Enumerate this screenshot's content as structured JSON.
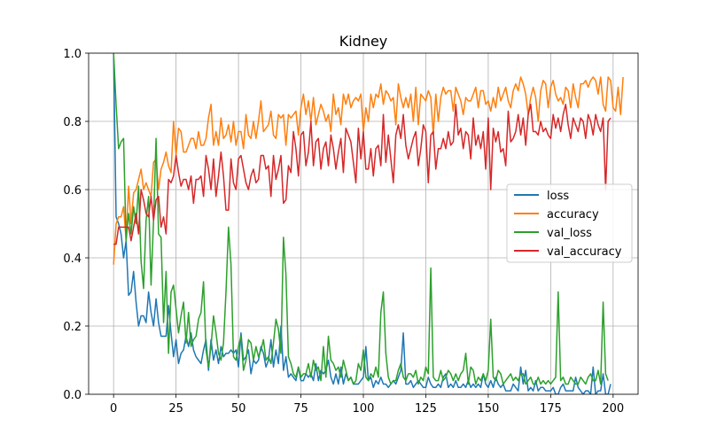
{
  "chart_data": {
    "type": "line",
    "title": "Kidney",
    "xlabel": "",
    "ylabel": "",
    "xlim": [
      -10,
      210
    ],
    "ylim": [
      0,
      1.0
    ],
    "xticks": [
      0,
      25,
      50,
      75,
      100,
      125,
      150,
      175,
      200
    ],
    "yticks": [
      0.0,
      0.2,
      0.4,
      0.6,
      0.8,
      1.0
    ],
    "xtick_labels": [
      "0",
      "25",
      "50",
      "75",
      "100",
      "125",
      "150",
      "175",
      "200"
    ],
    "ytick_labels": [
      "0.0",
      "0.2",
      "0.4",
      "0.6",
      "0.8",
      "1.0"
    ],
    "grid": true,
    "legend_position": "center-right",
    "x_start": 0,
    "series": [
      {
        "name": "loss",
        "color": "#1f77b4",
        "values": [
          1.0,
          0.52,
          0.5,
          0.47,
          0.4,
          0.45,
          0.29,
          0.3,
          0.36,
          0.27,
          0.2,
          0.23,
          0.23,
          0.21,
          0.3,
          0.24,
          0.2,
          0.28,
          0.21,
          0.17,
          0.17,
          0.17,
          0.26,
          0.18,
          0.11,
          0.16,
          0.09,
          0.12,
          0.13,
          0.17,
          0.14,
          0.18,
          0.13,
          0.11,
          0.1,
          0.09,
          0.13,
          0.16,
          0.07,
          0.16,
          0.1,
          0.13,
          0.09,
          0.14,
          0.11,
          0.12,
          0.12,
          0.13,
          0.12,
          0.13,
          0.08,
          0.18,
          0.1,
          0.11,
          0.13,
          0.06,
          0.1,
          0.09,
          0.1,
          0.14,
          0.12,
          0.08,
          0.1,
          0.16,
          0.08,
          0.13,
          0.09,
          0.2,
          0.07,
          0.11,
          0.05,
          0.06,
          0.05,
          0.04,
          0.08,
          0.04,
          0.04,
          0.06,
          0.05,
          0.06,
          0.04,
          0.09,
          0.04,
          0.07,
          0.06,
          0.07,
          0.1,
          0.05,
          0.03,
          0.06,
          0.03,
          0.08,
          0.03,
          0.06,
          0.04,
          0.05,
          0.03,
          0.03,
          0.03,
          0.04,
          0.05,
          0.14,
          0.04,
          0.05,
          0.02,
          0.04,
          0.03,
          0.05,
          0.03,
          0.03,
          0.02,
          0.03,
          0.04,
          0.03,
          0.05,
          0.07,
          0.18,
          0.03,
          0.03,
          0.04,
          0.02,
          0.03,
          0.04,
          0.03,
          0.02,
          0.02,
          0.05,
          0.03,
          0.02,
          0.02,
          0.03,
          0.02,
          0.05,
          0.06,
          0.02,
          0.03,
          0.02,
          0.04,
          0.02,
          0.02,
          0.03,
          0.02,
          0.04,
          0.02,
          0.03,
          0.02,
          0.03,
          0.02,
          0.06,
          0.03,
          0.02,
          0.04,
          0.02,
          0.05,
          0.03,
          0.02,
          0.03,
          0.01,
          0.01,
          0.01,
          0.03,
          0.02,
          0.01,
          0.08,
          0.03,
          0.07,
          0.01,
          0.02,
          0.01,
          0.04,
          0.01,
          0.02,
          0.02,
          0.01,
          0.01,
          0.01,
          0.02,
          0.0,
          0.0,
          0.02,
          0.03,
          0.01,
          0.01,
          0.01,
          0.01,
          0.05,
          0.02,
          0.01,
          0.0,
          0.01,
          0.01,
          0.0,
          0.08,
          0.0,
          0.01,
          0.01,
          0.06,
          0.0,
          0.0,
          0.03
        ]
      },
      {
        "name": "accuracy",
        "color": "#ff7f0e",
        "values": [
          0.38,
          0.5,
          0.52,
          0.52,
          0.55,
          0.45,
          0.61,
          0.5,
          0.59,
          0.6,
          0.63,
          0.66,
          0.6,
          0.62,
          0.6,
          0.58,
          0.68,
          0.69,
          0.6,
          0.66,
          0.68,
          0.71,
          0.67,
          0.65,
          0.8,
          0.7,
          0.78,
          0.77,
          0.71,
          0.71,
          0.73,
          0.75,
          0.75,
          0.72,
          0.77,
          0.73,
          0.73,
          0.75,
          0.81,
          0.85,
          0.73,
          0.77,
          0.73,
          0.81,
          0.75,
          0.76,
          0.79,
          0.74,
          0.8,
          0.73,
          0.77,
          0.77,
          0.72,
          0.82,
          0.76,
          0.75,
          0.8,
          0.75,
          0.8,
          0.86,
          0.77,
          0.78,
          0.79,
          0.83,
          0.76,
          0.75,
          0.82,
          0.81,
          0.82,
          0.73,
          0.82,
          0.81,
          0.82,
          0.83,
          0.76,
          0.84,
          0.88,
          0.82,
          0.86,
          0.8,
          0.87,
          0.79,
          0.82,
          0.85,
          0.83,
          0.8,
          0.82,
          0.77,
          0.88,
          0.82,
          0.84,
          0.79,
          0.88,
          0.85,
          0.88,
          0.84,
          0.86,
          0.87,
          0.86,
          0.88,
          0.77,
          0.84,
          0.8,
          0.88,
          0.84,
          0.88,
          0.87,
          0.91,
          0.85,
          0.89,
          0.88,
          0.86,
          0.87,
          0.79,
          0.91,
          0.87,
          0.84,
          0.87,
          0.84,
          0.88,
          0.8,
          0.9,
          0.79,
          0.88,
          0.87,
          0.86,
          0.89,
          0.87,
          0.76,
          0.88,
          0.8,
          0.87,
          0.9,
          0.88,
          0.89,
          0.89,
          0.83,
          0.9,
          0.88,
          0.86,
          0.82,
          0.87,
          0.86,
          0.86,
          0.88,
          0.9,
          0.84,
          0.89,
          0.89,
          0.85,
          0.86,
          0.83,
          0.87,
          0.84,
          0.9,
          0.86,
          0.88,
          0.9,
          0.86,
          0.84,
          0.89,
          0.91,
          0.89,
          0.93,
          0.91,
          0.88,
          0.82,
          0.87,
          0.9,
          0.87,
          0.8,
          0.89,
          0.92,
          0.91,
          0.84,
          0.9,
          0.92,
          0.88,
          0.86,
          0.87,
          0.85,
          0.9,
          0.89,
          0.84,
          0.91,
          0.87,
          0.84,
          0.91,
          0.91,
          0.92,
          0.9,
          0.92,
          0.93,
          0.92,
          0.88,
          0.93,
          0.85,
          0.83,
          0.93,
          0.92,
          0.84,
          0.83,
          0.9,
          0.82,
          0.93
        ]
      },
      {
        "name": "val_loss",
        "color": "#2ca02c",
        "values": [
          1.0,
          0.85,
          0.72,
          0.74,
          0.75,
          0.45,
          0.53,
          0.47,
          0.55,
          0.5,
          0.61,
          0.39,
          0.31,
          0.51,
          0.58,
          0.32,
          0.51,
          0.75,
          0.47,
          0.46,
          0.21,
          0.36,
          0.12,
          0.3,
          0.32,
          0.25,
          0.18,
          0.23,
          0.27,
          0.15,
          0.24,
          0.14,
          0.16,
          0.17,
          0.22,
          0.24,
          0.33,
          0.13,
          0.08,
          0.14,
          0.23,
          0.18,
          0.12,
          0.1,
          0.15,
          0.3,
          0.49,
          0.38,
          0.11,
          0.1,
          0.14,
          0.17,
          0.07,
          0.1,
          0.16,
          0.15,
          0.1,
          0.14,
          0.11,
          0.13,
          0.16,
          0.1,
          0.11,
          0.09,
          0.15,
          0.22,
          0.19,
          0.12,
          0.46,
          0.35,
          0.11,
          0.09,
          0.06,
          0.05,
          0.08,
          0.05,
          0.06,
          0.06,
          0.09,
          0.05,
          0.1,
          0.07,
          0.08,
          0.04,
          0.14,
          0.05,
          0.17,
          0.1,
          0.09,
          0.07,
          0.08,
          0.05,
          0.1,
          0.07,
          0.04,
          0.05,
          0.03,
          0.04,
          0.09,
          0.07,
          0.13,
          0.05,
          0.04,
          0.06,
          0.05,
          0.08,
          0.05,
          0.24,
          0.3,
          0.12,
          0.05,
          0.03,
          0.04,
          0.04,
          0.07,
          0.09,
          0.05,
          0.04,
          0.06,
          0.06,
          0.05,
          0.07,
          0.03,
          0.05,
          0.04,
          0.08,
          0.06,
          0.37,
          0.05,
          0.04,
          0.04,
          0.07,
          0.04,
          0.05,
          0.07,
          0.06,
          0.04,
          0.06,
          0.04,
          0.06,
          0.07,
          0.12,
          0.03,
          0.08,
          0.07,
          0.03,
          0.05,
          0.04,
          0.06,
          0.04,
          0.07,
          0.22,
          0.05,
          0.04,
          0.07,
          0.06,
          0.03,
          0.04,
          0.05,
          0.06,
          0.04,
          0.05,
          0.04,
          0.06,
          0.06,
          0.03,
          0.04,
          0.05,
          0.03,
          0.03,
          0.05,
          0.03,
          0.04,
          0.03,
          0.04,
          0.03,
          0.04,
          0.05,
          0.3,
          0.04,
          0.05,
          0.03,
          0.03,
          0.05,
          0.04,
          0.03,
          0.03,
          0.05,
          0.04,
          0.03,
          0.05,
          0.06,
          0.04,
          0.04,
          0.07,
          0.03,
          0.27,
          0.06,
          0.04
        ]
      },
      {
        "name": "val_accuracy",
        "color": "#d62728",
        "values": [
          0.44,
          0.44,
          0.49,
          0.49,
          0.49,
          0.49,
          0.49,
          0.45,
          0.49,
          0.53,
          0.47,
          0.6,
          0.57,
          0.53,
          0.52,
          0.58,
          0.51,
          0.57,
          0.58,
          0.49,
          0.52,
          0.47,
          0.63,
          0.62,
          0.64,
          0.7,
          0.65,
          0.61,
          0.63,
          0.63,
          0.6,
          0.64,
          0.56,
          0.63,
          0.63,
          0.64,
          0.58,
          0.7,
          0.66,
          0.6,
          0.69,
          0.58,
          0.64,
          0.71,
          0.64,
          0.54,
          0.54,
          0.69,
          0.62,
          0.6,
          0.69,
          0.7,
          0.66,
          0.62,
          0.6,
          0.64,
          0.66,
          0.62,
          0.63,
          0.7,
          0.7,
          0.66,
          0.67,
          0.58,
          0.7,
          0.63,
          0.66,
          0.7,
          0.56,
          0.57,
          0.67,
          0.65,
          0.77,
          0.72,
          0.64,
          0.76,
          0.77,
          0.67,
          0.71,
          0.8,
          0.67,
          0.74,
          0.75,
          0.66,
          0.72,
          0.74,
          0.67,
          0.76,
          0.72,
          0.66,
          0.71,
          0.75,
          0.65,
          0.78,
          0.76,
          0.74,
          0.68,
          0.62,
          0.78,
          0.69,
          0.77,
          0.66,
          0.66,
          0.72,
          0.64,
          0.72,
          0.73,
          0.67,
          0.82,
          0.68,
          0.76,
          0.69,
          0.62,
          0.76,
          0.79,
          0.75,
          0.82,
          0.73,
          0.69,
          0.72,
          0.75,
          0.77,
          0.67,
          0.72,
          0.79,
          0.77,
          0.62,
          0.76,
          0.77,
          0.66,
          0.72,
          0.72,
          0.75,
          0.72,
          0.77,
          0.73,
          0.74,
          0.85,
          0.76,
          0.78,
          0.72,
          0.77,
          0.76,
          0.69,
          0.81,
          0.73,
          0.76,
          0.72,
          0.77,
          0.66,
          0.81,
          0.6,
          0.78,
          0.74,
          0.77,
          0.71,
          0.72,
          0.67,
          0.83,
          0.74,
          0.75,
          0.77,
          0.82,
          0.76,
          0.81,
          0.73,
          0.82,
          0.85,
          0.77,
          0.77,
          0.76,
          0.8,
          0.77,
          0.78,
          0.76,
          0.75,
          0.82,
          0.78,
          0.81,
          0.77,
          0.82,
          0.85,
          0.79,
          0.75,
          0.81,
          0.79,
          0.77,
          0.81,
          0.8,
          0.75,
          0.82,
          0.8,
          0.76,
          0.82,
          0.79,
          0.77,
          0.81,
          0.6,
          0.8,
          0.81
        ]
      }
    ]
  }
}
